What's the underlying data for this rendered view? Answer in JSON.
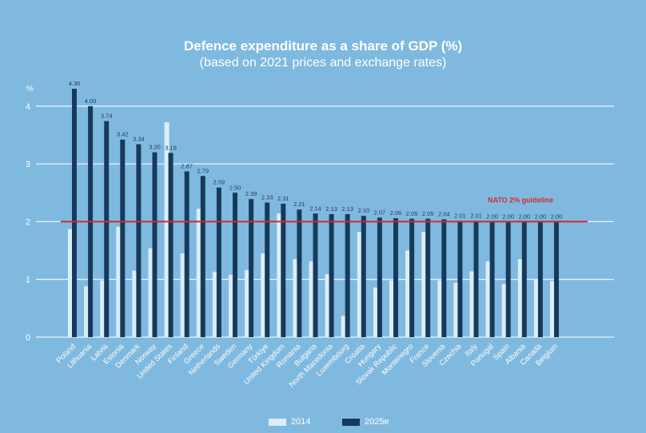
{
  "chart_data": {
    "type": "bar",
    "title": "Defence expenditure as a share of GDP (%)",
    "subtitle": "(based on 2021 prices and exchange rates)",
    "ylabel": "%",
    "ylim": [
      0,
      4.5
    ],
    "yticks": [
      0,
      1,
      2,
      3,
      4
    ],
    "grid": true,
    "legend_placement": "bottom",
    "categories": [
      "Poland",
      "Lithuania",
      "Latvia",
      "Estonia",
      "Denmark",
      "Norway",
      "United States",
      "Finland",
      "Greece",
      "Netherlands",
      "Sweden",
      "Germany",
      "Türkiye",
      "United Kingdom",
      "Romania",
      "Bulgaria",
      "North Macedonia",
      "Luxembourg",
      "Croatia",
      "Hungary",
      "Slovak Republic",
      "Montenegro",
      "France",
      "Slovenia",
      "Czechia",
      "Italy",
      "Portugal",
      "Spain",
      "Albania",
      "Canada",
      "Belgium"
    ],
    "series": [
      {
        "name": "2014",
        "color": "#d9eef9",
        "values": [
          1.87,
          0.88,
          0.98,
          1.91,
          1.15,
          1.54,
          3.72,
          1.45,
          2.22,
          1.13,
          1.08,
          1.16,
          1.45,
          2.14,
          1.35,
          1.31,
          1.09,
          0.37,
          1.82,
          0.86,
          0.98,
          1.5,
          1.82,
          0.98,
          0.94,
          1.14,
          1.31,
          0.92,
          1.35,
          1.01,
          0.97
        ]
      },
      {
        "name": "2025e",
        "color": "#173a5c",
        "values": [
          4.3,
          4.0,
          3.74,
          3.42,
          3.34,
          3.2,
          3.19,
          2.87,
          2.79,
          2.59,
          2.5,
          2.39,
          2.33,
          2.31,
          2.21,
          2.14,
          2.13,
          2.13,
          2.1,
          2.07,
          2.06,
          2.05,
          2.05,
          2.04,
          2.01,
          2.01,
          2.0,
          2.0,
          2.0,
          2.0,
          2.0
        ],
        "labels": [
          "4.30",
          "4.00",
          "3.74",
          "3.42",
          "3.34",
          "3.20",
          "3.19",
          "2.87",
          "2.79",
          "2.59",
          "2.50",
          "2.39",
          "2.33",
          "2.31",
          "2.21",
          "2.14",
          "2.13",
          "2.13",
          "2.10",
          "2.07",
          "2.06",
          "2.05",
          "2.05",
          "2.04",
          "2.01",
          "2.01",
          "2.00",
          "2.00",
          "2.00",
          "2.00",
          "2.00"
        ]
      }
    ],
    "reference_line": {
      "value": 2,
      "label": "NATO 2% guideline",
      "color": "#d42a2a"
    }
  }
}
